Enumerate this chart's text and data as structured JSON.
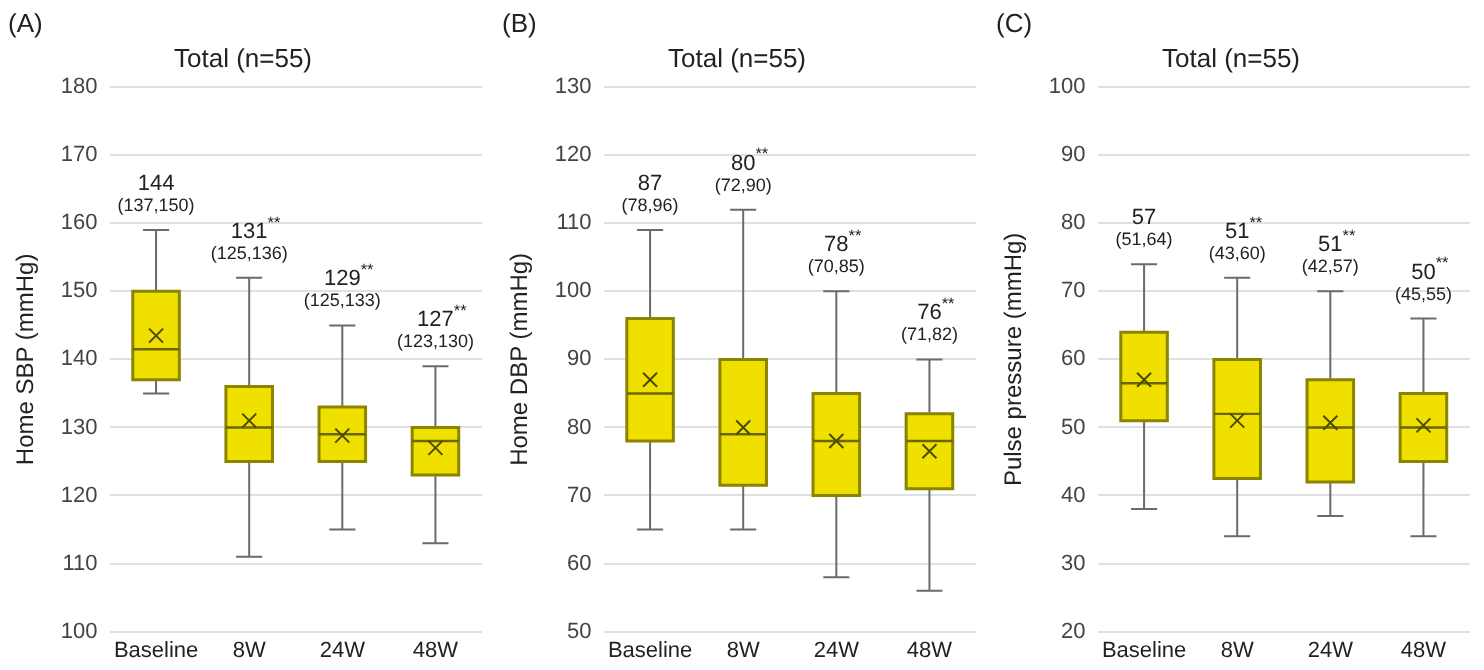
{
  "chart_data": [
    {
      "type": "box",
      "title": "Total (n=55)",
      "ylabel": "Home SBP (mmHg)",
      "categories": [
        "Baseline",
        "8W",
        "24W",
        "48W"
      ],
      "color": "#f0e000",
      "ylim": [
        100,
        180
      ],
      "yticks": [
        100,
        110,
        120,
        130,
        140,
        150,
        160,
        170,
        180
      ],
      "grid": "y",
      "marker": "cross",
      "boxes": [
        {
          "low": 135,
          "q1": 137,
          "median": 141.5,
          "q3": 150,
          "high": 159,
          "mean": 143.5
        },
        {
          "low": 111,
          "q1": 125,
          "median": 130,
          "q3": 136,
          "high": 152,
          "mean": 131
        },
        {
          "low": 115,
          "q1": 125,
          "median": 129,
          "q3": 133,
          "high": 145,
          "mean": 128.8
        },
        {
          "low": 113,
          "q1": 123,
          "median": 128,
          "q3": 130,
          "high": 139,
          "mean": 127
        }
      ],
      "value_labels": [
        "144\n(137,150)",
        "131$^{**}$\n(125,136)",
        "129$^{**}$\n(125,133)",
        "127$^{**}$\n(123,130)"
      ],
      "annotations": [
        "(A)"
      ]
    },
    {
      "type": "box",
      "title": "Total (n=55)",
      "ylabel": "Home DBP (mmHg)",
      "categories": [
        "Baseline",
        "8W",
        "24W",
        "48W"
      ],
      "color": "#f0e000",
      "ylim": [
        50,
        130
      ],
      "yticks": [
        50,
        60,
        70,
        80,
        90,
        100,
        110,
        120,
        130
      ],
      "grid": "y",
      "marker": "cross",
      "boxes": [
        {
          "low": 65,
          "q1": 78,
          "median": 85,
          "q3": 96,
          "high": 109,
          "mean": 87
        },
        {
          "low": 65,
          "q1": 71.5,
          "median": 79,
          "q3": 90,
          "high": 112,
          "mean": 80
        },
        {
          "low": 58,
          "q1": 70,
          "median": 78,
          "q3": 85,
          "high": 100,
          "mean": 78
        },
        {
          "low": 56,
          "q1": 71,
          "median": 78,
          "q3": 82,
          "high": 90,
          "mean": 76.5
        }
      ],
      "value_labels": [
        "87\n(78,96)",
        "80$^{**}$\n(72,90)",
        "78$^{**}$\n(70,85)",
        "76$^{**}$\n(71,82)"
      ],
      "annotations": [
        "(B)"
      ]
    },
    {
      "type": "box",
      "title": "Total (n=55)",
      "ylabel": "Pulse pressure (mmHg)",
      "categories": [
        "Baseline",
        "8W",
        "24W",
        "48W"
      ],
      "color": "#f0e000",
      "ylim": [
        20,
        100
      ],
      "yticks": [
        20,
        30,
        40,
        50,
        60,
        70,
        80,
        90,
        100
      ],
      "grid": "y",
      "marker": "cross",
      "boxes": [
        {
          "low": 38,
          "q1": 51,
          "median": 56.5,
          "q3": 64,
          "high": 74,
          "mean": 57
        },
        {
          "low": 34,
          "q1": 42.5,
          "median": 52,
          "q3": 60,
          "high": 72,
          "mean": 51
        },
        {
          "low": 37,
          "q1": 42,
          "median": 50,
          "q3": 57,
          "high": 70,
          "mean": 50.7
        },
        {
          "low": 34,
          "q1": 45,
          "median": 50,
          "q3": 55,
          "high": 66,
          "mean": 50.3
        }
      ],
      "value_labels": [
        "57\n(51,64)",
        "51$^{**}$\n(43,60)",
        "51$^{**}$\n(42,57)",
        "50$^{**}$\n(45,55)"
      ],
      "annotations": [
        "(C)"
      ]
    }
  ]
}
